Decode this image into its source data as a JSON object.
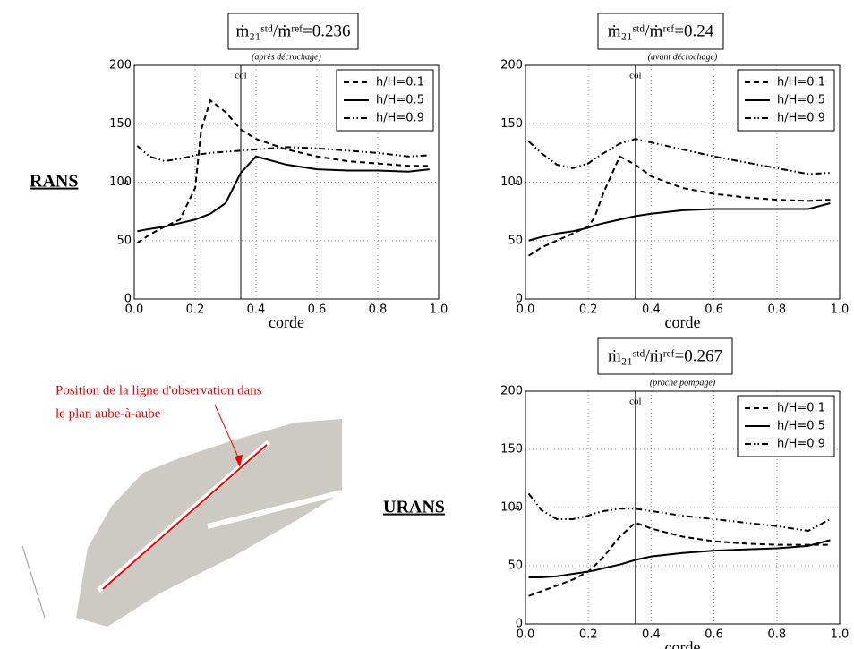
{
  "chart_data": [
    {
      "type": "line",
      "title": "ṁ₂₁ˢᵗᵈ/ṁʳᵉᶠ=0.236",
      "subtitle": "(après décrochage)",
      "xlabel": "corde",
      "ylabel": "s",
      "annotation": {
        "text": "col",
        "x": 0.35
      },
      "x": [
        0.01,
        0.05,
        0.1,
        0.15,
        0.2,
        0.22,
        0.25,
        0.3,
        0.35,
        0.4,
        0.5,
        0.6,
        0.7,
        0.8,
        0.9,
        0.97
      ],
      "series": [
        {
          "name": "h/H=0.1",
          "color": "#000000",
          "linestyle": "dashed",
          "values": [
            48,
            55,
            62,
            68,
            95,
            145,
            170,
            160,
            145,
            137,
            128,
            122,
            118,
            116,
            114,
            114
          ]
        },
        {
          "name": "h/H=0.5",
          "color": "#000000",
          "linestyle": "solid",
          "values": [
            58,
            60,
            62,
            65,
            68,
            70,
            73,
            82,
            108,
            122,
            115,
            111,
            110,
            110,
            109,
            111
          ]
        },
        {
          "name": "h/H=0.9",
          "color": "#000000",
          "linestyle": "dashdot",
          "values": [
            131,
            122,
            118,
            120,
            123,
            124,
            125,
            126,
            127,
            128,
            130,
            129,
            127,
            125,
            122,
            123
          ]
        }
      ],
      "xlim": [
        0,
        1
      ],
      "ylim": [
        0,
        200
      ],
      "xticks": [
        {
          "value": 0,
          "label": "0.0"
        },
        {
          "value": 0.2,
          "label": "0.2"
        },
        {
          "value": 0.4,
          "label": "0.4"
        },
        {
          "value": 0.6,
          "label": "0.6"
        },
        {
          "value": 0.8,
          "label": "0.8"
        },
        {
          "value": 1,
          "label": "1.0"
        }
      ],
      "yticks": [
        0,
        50,
        100,
        150,
        200
      ],
      "grid": true,
      "legend": "upper right"
    },
    {
      "type": "line",
      "title": "ṁ₂₁ˢᵗᵈ/ṁʳᵉᶠ=0.24",
      "subtitle": "(avant décrochage)",
      "xlabel": "corde",
      "ylabel": "s",
      "annotation": {
        "text": "col",
        "x": 0.35
      },
      "x": [
        0.01,
        0.05,
        0.1,
        0.15,
        0.2,
        0.22,
        0.25,
        0.3,
        0.35,
        0.4,
        0.5,
        0.6,
        0.7,
        0.8,
        0.9,
        0.97
      ],
      "series": [
        {
          "name": "h/H=0.1",
          "color": "#000000",
          "linestyle": "dashed",
          "values": [
            37,
            44,
            50,
            56,
            62,
            70,
            92,
            122,
            115,
            105,
            95,
            90,
            87,
            85,
            84,
            85
          ]
        },
        {
          "name": "h/H=0.5",
          "color": "#000000",
          "linestyle": "solid",
          "values": [
            50,
            53,
            56,
            58,
            61,
            63,
            65,
            68,
            71,
            73,
            76,
            77,
            77,
            77,
            77,
            82
          ]
        },
        {
          "name": "h/H=0.9",
          "color": "#000000",
          "linestyle": "dashdot",
          "values": [
            135,
            125,
            115,
            112,
            116,
            120,
            125,
            133,
            137,
            134,
            128,
            122,
            117,
            112,
            107,
            108
          ]
        }
      ],
      "xlim": [
        0,
        1
      ],
      "ylim": [
        0,
        200
      ],
      "xticks": [
        {
          "value": 0,
          "label": "0.0"
        },
        {
          "value": 0.2,
          "label": "0.2"
        },
        {
          "value": 0.4,
          "label": "0.4"
        },
        {
          "value": 0.6,
          "label": "0.6"
        },
        {
          "value": 0.8,
          "label": "0.8"
        },
        {
          "value": 1,
          "label": "1.0"
        }
      ],
      "yticks": [
        0,
        50,
        100,
        150,
        200
      ],
      "grid": true,
      "legend": "upper right"
    },
    {
      "type": "line",
      "title": "ṁ₂₁ˢᵗᵈ/ṁʳᵉᶠ=0.267",
      "subtitle": "(proche pompage)",
      "xlabel": "corde",
      "ylabel": "s",
      "annotation": {
        "text": "col",
        "x": 0.35
      },
      "x": [
        0.01,
        0.05,
        0.1,
        0.15,
        0.2,
        0.22,
        0.25,
        0.3,
        0.35,
        0.4,
        0.5,
        0.6,
        0.7,
        0.8,
        0.9,
        0.97
      ],
      "series": [
        {
          "name": "h/H=0.1",
          "color": "#000000",
          "linestyle": "dashed",
          "values": [
            24,
            28,
            33,
            38,
            45,
            50,
            58,
            75,
            87,
            82,
            75,
            71,
            69,
            68,
            68,
            68
          ]
        },
        {
          "name": "h/H=0.5",
          "color": "#000000",
          "linestyle": "solid",
          "values": [
            40,
            40,
            41,
            43,
            45,
            46,
            48,
            51,
            55,
            58,
            61,
            63,
            64,
            65,
            67,
            72
          ]
        },
        {
          "name": "h/H=0.9",
          "color": "#000000",
          "linestyle": "dashdot",
          "values": [
            112,
            98,
            90,
            90,
            93,
            95,
            97,
            99,
            99,
            97,
            93,
            90,
            87,
            84,
            80,
            90
          ]
        }
      ],
      "xlim": [
        0,
        1
      ],
      "ylim": [
        0,
        200
      ],
      "xticks": [
        {
          "value": 0,
          "label": "0.0"
        },
        {
          "value": 0.2,
          "label": "0.2"
        },
        {
          "value": 0.4,
          "label": "0.4"
        },
        {
          "value": 0.6,
          "label": "0.6"
        },
        {
          "value": 0.8,
          "label": "0.8"
        },
        {
          "value": 1,
          "label": "1.0"
        }
      ],
      "yticks": [
        0,
        50,
        100,
        150,
        200
      ],
      "grid": true,
      "legend": "upper right"
    }
  ],
  "labels": {
    "rans": "RANS",
    "urans": "URANS"
  },
  "diagram": {
    "annotation": [
      "Position de la ligne d'observation dans",
      "le plan aube-à-aube"
    ]
  }
}
